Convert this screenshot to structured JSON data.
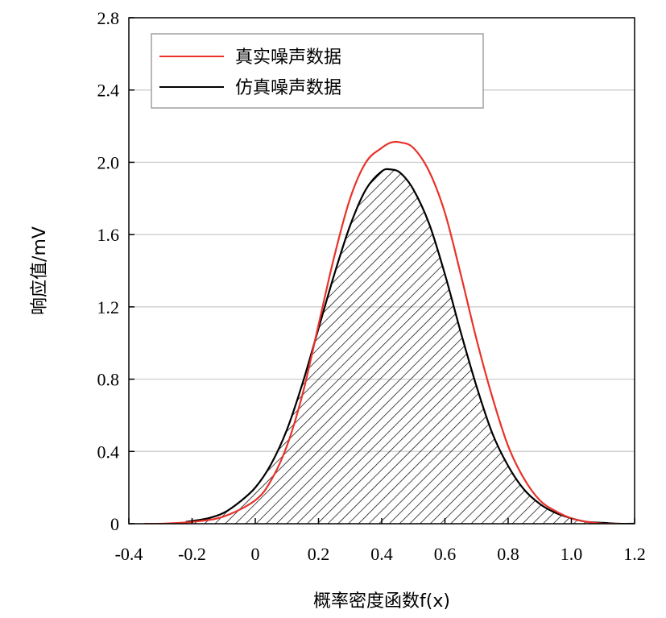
{
  "chart_data": {
    "type": "line",
    "title": "",
    "xlabel": "概率密度函数f(x)",
    "ylabel": "响应值/mV",
    "xlim": [
      -0.4,
      1.2
    ],
    "ylim": [
      0,
      2.8
    ],
    "xticks": [
      "-0.4",
      "-0.2",
      "0",
      "0.2",
      "0.4",
      "0.6",
      "0.8",
      "1.0",
      "1.2"
    ],
    "yticks": [
      "0",
      "0.4",
      "0.8",
      "1.2",
      "1.6",
      "2.0",
      "2.4",
      "2.8"
    ],
    "grid": "horizontal",
    "legend_position": "top-left",
    "series": [
      {
        "name": "真实噪声数据",
        "color": "#e8322a",
        "x": [
          -0.35,
          -0.3,
          -0.2,
          -0.1,
          0.0,
          0.05,
          0.1,
          0.15,
          0.2,
          0.25,
          0.3,
          0.35,
          0.4,
          0.43,
          0.46,
          0.5,
          0.55,
          0.6,
          0.65,
          0.7,
          0.75,
          0.8,
          0.85,
          0.9,
          0.95,
          1.0,
          1.05,
          1.1,
          1.15
        ],
        "y": [
          0.0,
          0.0,
          0.01,
          0.04,
          0.13,
          0.24,
          0.43,
          0.72,
          1.1,
          1.48,
          1.8,
          2.0,
          2.08,
          2.11,
          2.11,
          2.08,
          1.95,
          1.72,
          1.38,
          1.02,
          0.7,
          0.43,
          0.25,
          0.13,
          0.07,
          0.03,
          0.01,
          0.0,
          0.0
        ]
      },
      {
        "name": "仿真噪声数据",
        "color": "#000000",
        "hatched": true,
        "x": [
          -0.22,
          -0.15,
          -0.1,
          -0.05,
          0.0,
          0.05,
          0.1,
          0.15,
          0.2,
          0.25,
          0.3,
          0.35,
          0.4,
          0.43,
          0.46,
          0.5,
          0.55,
          0.6,
          0.65,
          0.7,
          0.75,
          0.8,
          0.85,
          0.9,
          0.95,
          1.0,
          1.05,
          1.1,
          1.15,
          1.2
        ],
        "y": [
          0.01,
          0.03,
          0.06,
          0.12,
          0.2,
          0.33,
          0.52,
          0.78,
          1.08,
          1.38,
          1.65,
          1.85,
          1.95,
          1.96,
          1.94,
          1.85,
          1.66,
          1.38,
          1.06,
          0.76,
          0.5,
          0.32,
          0.19,
          0.11,
          0.06,
          0.03,
          0.01,
          0.005,
          0.0,
          0.0
        ]
      }
    ]
  }
}
